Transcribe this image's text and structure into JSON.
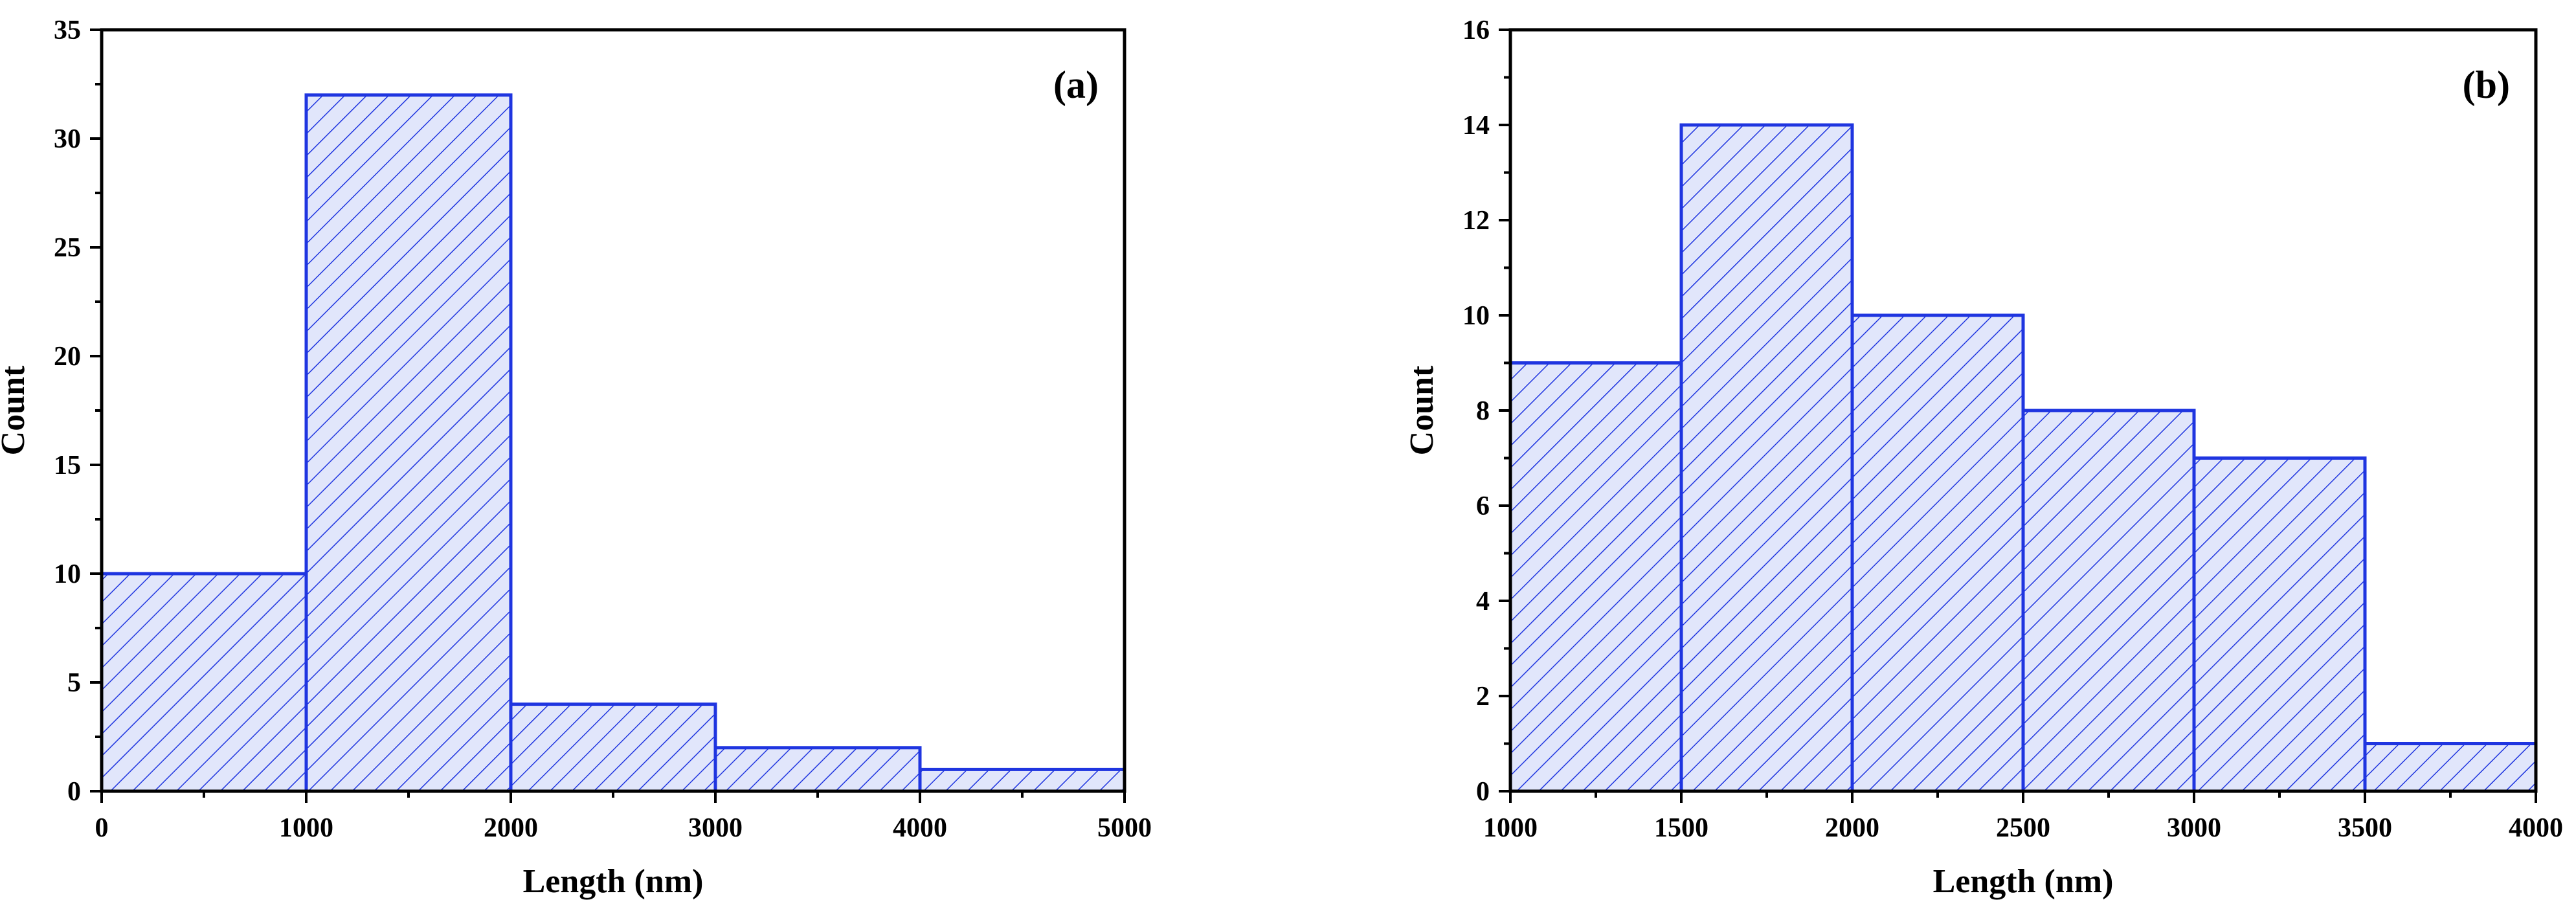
{
  "chart_data": [
    {
      "type": "bar",
      "panel_label": "(a)",
      "bin_edges": [
        0,
        1000,
        2000,
        3000,
        4000,
        5000
      ],
      "values": [
        10,
        32,
        4,
        2,
        1
      ],
      "xlabel": "Length (nm)",
      "ylabel": "Count",
      "xlim": [
        0,
        5000
      ],
      "ylim": [
        0,
        35
      ],
      "x_ticks": [
        0,
        1000,
        2000,
        3000,
        4000,
        5000
      ],
      "y_ticks": [
        0,
        5,
        10,
        15,
        20,
        25,
        30,
        35
      ],
      "grid": false,
      "bar_fill": "#e1e6fb",
      "bar_edge": "#1f35e0",
      "hatch_color": "#1f35e0"
    },
    {
      "type": "bar",
      "panel_label": "(b)",
      "bin_edges": [
        1000,
        1500,
        2000,
        2500,
        3000,
        3500,
        4000
      ],
      "values": [
        9,
        14,
        10,
        8,
        7,
        1
      ],
      "xlabel": "Length (nm)",
      "ylabel": "Count",
      "xlim": [
        1000,
        4000
      ],
      "ylim": [
        0,
        16
      ],
      "x_ticks": [
        1000,
        1500,
        2000,
        2500,
        3000,
        3500,
        4000
      ],
      "y_ticks": [
        0,
        2,
        4,
        6,
        8,
        10,
        12,
        14,
        16
      ],
      "grid": false,
      "bar_fill": "#e1e6fb",
      "bar_edge": "#1f35e0",
      "hatch_color": "#1f35e0"
    }
  ]
}
